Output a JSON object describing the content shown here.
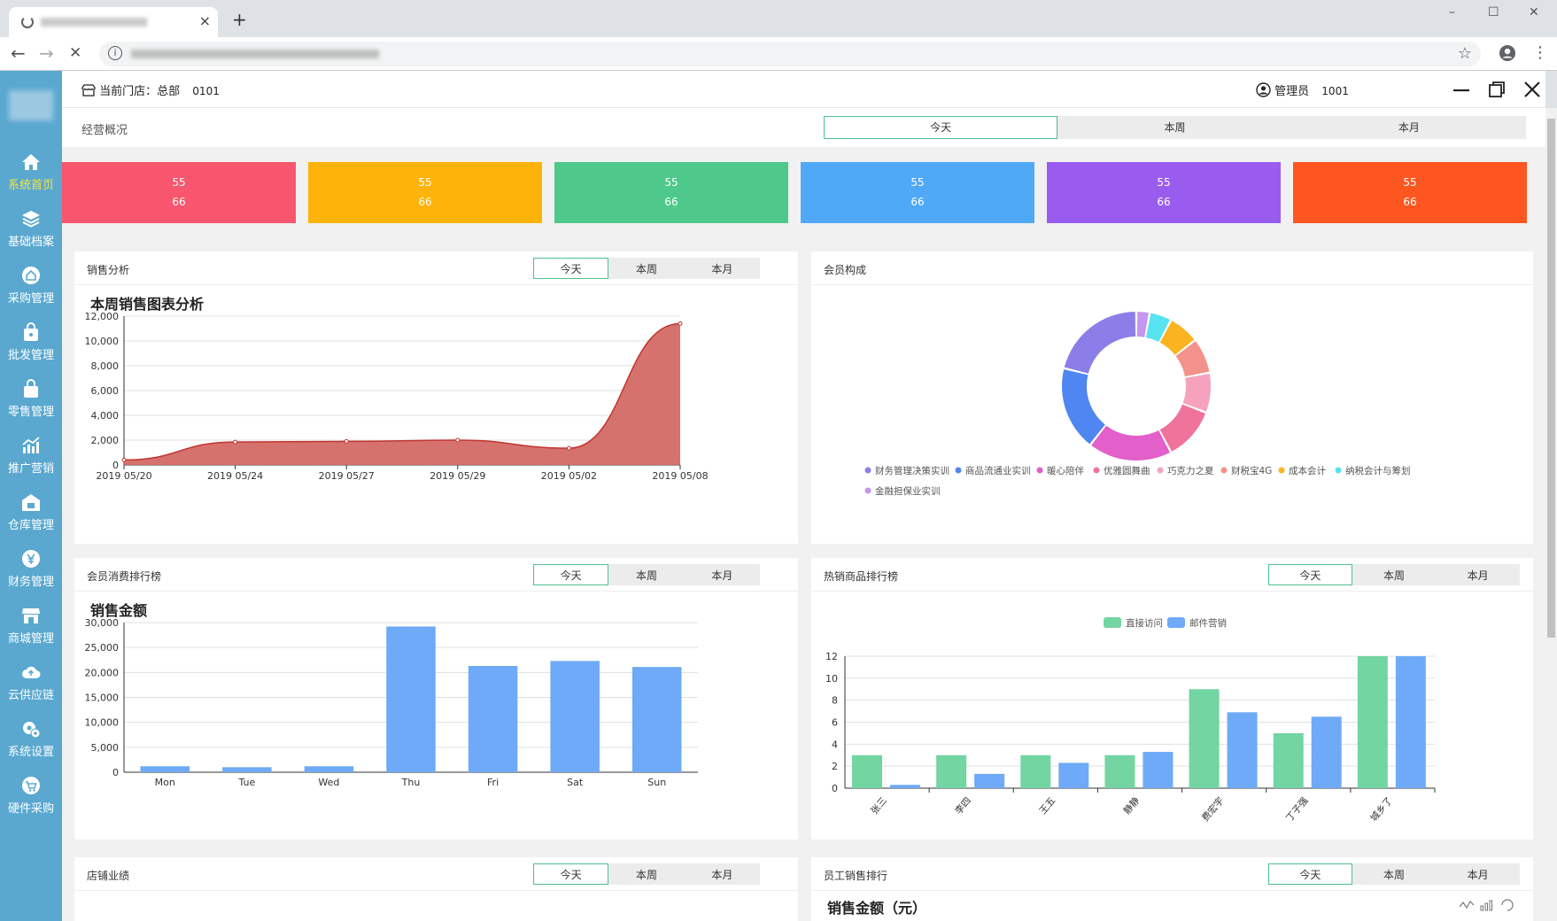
{
  "browser": {
    "tab_close": "×",
    "new_tab": "+",
    "win_min": "–",
    "win_max": "☐",
    "win_close": "✕",
    "back": "←",
    "forward": "→",
    "stop": "✕",
    "star": "☆",
    "menu": "⋮"
  },
  "sidebar": {
    "items": [
      {
        "label": "系统首页",
        "icon": "home-icon",
        "active": true
      },
      {
        "label": "基础档案",
        "icon": "layers-icon"
      },
      {
        "label": "采购管理",
        "icon": "house-icon"
      },
      {
        "label": "批发管理",
        "icon": "bag-icon"
      },
      {
        "label": "零售管理",
        "icon": "basket-icon"
      },
      {
        "label": "推广营销",
        "icon": "chart-up-icon"
      },
      {
        "label": "仓库管理",
        "icon": "warehouse-icon"
      },
      {
        "label": "财务管理",
        "icon": "yen-icon"
      },
      {
        "label": "商城管理",
        "icon": "shop-icon"
      },
      {
        "label": "云供应链",
        "icon": "cloud-icon"
      },
      {
        "label": "系统设置",
        "icon": "gears-icon"
      },
      {
        "label": "硬件采购",
        "icon": "cart-icon"
      }
    ]
  },
  "header": {
    "store_label": "当前门店：总部",
    "store_code": "0101",
    "user_label": "管理员",
    "user_code": "1001"
  },
  "overview": {
    "title": "经营概况",
    "tabs": [
      "今天",
      "本周",
      "本月"
    ],
    "stats": [
      {
        "a": "55",
        "b": "66",
        "color": "#f7566e"
      },
      {
        "a": "55",
        "b": "66",
        "color": "#fdb30a"
      },
      {
        "a": "55",
        "b": "66",
        "color": "#4ec98b"
      },
      {
        "a": "55",
        "b": "66",
        "color": "#4fa9f7"
      },
      {
        "a": "55",
        "b": "66",
        "color": "#9a5cef"
      },
      {
        "a": "55",
        "b": "66",
        "color": "#fe5621"
      }
    ]
  },
  "panels": {
    "sales": {
      "title": "销售分析",
      "tabs": [
        "今天",
        "本周",
        "本月"
      ],
      "chart_title": "本周销售图表分析"
    },
    "members": {
      "title": "会员构成"
    },
    "member_rank": {
      "title": "会员消费排行榜",
      "tabs": [
        "今天",
        "本周",
        "本月"
      ],
      "chart_title": "销售金额"
    },
    "hot_goods": {
      "title": "热销商品排行榜",
      "tabs": [
        "今天",
        "本周",
        "本月"
      ]
    },
    "store_perf": {
      "title": "店铺业绩",
      "tabs": [
        "今天",
        "本周",
        "本月"
      ]
    },
    "staff_rank": {
      "title": "员工销售排行",
      "tabs": [
        "今天",
        "本周",
        "本月"
      ],
      "chart_title": "销售金额（元）"
    }
  },
  "chart_data": [
    {
      "type": "area",
      "title": "本周销售图表分析",
      "x": [
        "2019 05/20",
        "2019 05/24",
        "2019 05/27",
        "2019 05/29",
        "2019 05/02",
        "2019 05/08"
      ],
      "values": [
        400,
        1850,
        1900,
        2000,
        1350,
        11400
      ],
      "ylim": [
        0,
        12000
      ],
      "yticks": [
        "0",
        "2,000",
        "4,000",
        "6,000",
        "8,000",
        "10,000",
        "12,000"
      ],
      "color": "#c23531"
    },
    {
      "type": "pie",
      "title": "",
      "series": [
        {
          "name": "财务管理决策实训",
          "value": 22,
          "color": "#8c7ee8"
        },
        {
          "name": "商品流通业实训",
          "value": 19,
          "color": "#5086f1"
        },
        {
          "name": "暖心陪伴",
          "value": 19,
          "color": "#e35fc9"
        },
        {
          "name": "优雅圆舞曲",
          "value": 12,
          "color": "#f0739c"
        },
        {
          "name": "巧克力之夏",
          "value": 9,
          "color": "#f7a2bd"
        },
        {
          "name": "财税宝4G",
          "value": 8,
          "color": "#f3928a"
        },
        {
          "name": "成本会计",
          "value": 7,
          "color": "#fbb420"
        },
        {
          "name": "纳税会计与筹划",
          "value": 5,
          "color": "#57e3f0"
        },
        {
          "name": "金融担保业实训",
          "value": 3,
          "color": "#c595f0"
        }
      ]
    },
    {
      "type": "bar",
      "title": "销售金额",
      "categories": [
        "Mon",
        "Tue",
        "Wed",
        "Thu",
        "Fri",
        "Sat",
        "Sun"
      ],
      "values": [
        1200,
        1000,
        1200,
        29200,
        21300,
        22300,
        21100
      ],
      "ylim": [
        0,
        30000
      ],
      "yticks": [
        "0",
        "5,000",
        "10,000",
        "15,000",
        "20,000",
        "25,000",
        "30,000"
      ],
      "color": "#6eaaf7"
    },
    {
      "type": "bar",
      "title": "",
      "categories": [
        "张三",
        "李四",
        "王五",
        "静静",
        "费宏宇",
        "丁子强",
        "城乡了"
      ],
      "series": [
        {
          "name": "直接访问",
          "values": [
            3,
            3,
            3,
            3,
            9,
            5,
            12
          ],
          "color": "#72d5a2"
        },
        {
          "name": "邮件营销",
          "values": [
            0.3,
            1.3,
            2.3,
            3.3,
            6.9,
            6.5,
            12
          ],
          "color": "#6eaaf7"
        }
      ],
      "ylim": [
        0,
        12
      ],
      "yticks": [
        "0",
        "2",
        "4",
        "6",
        "8",
        "10",
        "12"
      ]
    }
  ]
}
